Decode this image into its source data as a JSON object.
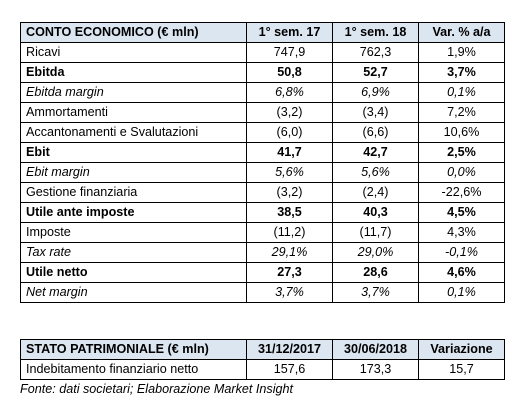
{
  "income_statement": {
    "headers": [
      "CONTO ECONOMICO (€ mln)",
      "1° sem. 17",
      "1° sem. 18",
      "Var. % a/a"
    ],
    "rows": [
      {
        "label": "Ricavi",
        "v1": "747,9",
        "v2": "762,3",
        "var": "1,9%",
        "style": "normal"
      },
      {
        "label": "Ebitda",
        "v1": "50,8",
        "v2": "52,7",
        "var": "3,7%",
        "style": "bold"
      },
      {
        "label": "Ebitda margin",
        "v1": "6,8%",
        "v2": "6,9%",
        "var": "0,1%",
        "style": "italic"
      },
      {
        "label": "Ammortamenti",
        "v1": "(3,2)",
        "v2": "(3,4)",
        "var": "7,2%",
        "style": "normal"
      },
      {
        "label": "Accantonamenti e Svalutazioni",
        "v1": "(6,0)",
        "v2": "(6,6)",
        "var": "10,6%",
        "style": "normal"
      },
      {
        "label": "Ebit",
        "v1": "41,7",
        "v2": "42,7",
        "var": "2,5%",
        "style": "bold"
      },
      {
        "label": "Ebit margin",
        "v1": "5,6%",
        "v2": "5,6%",
        "var": "0,0%",
        "style": "italic"
      },
      {
        "label": "Gestione finanziaria",
        "v1": "(3,2)",
        "v2": "(2,4)",
        "var": "-22,6%",
        "style": "normal"
      },
      {
        "label": "Utile ante imposte",
        "v1": "38,5",
        "v2": "40,3",
        "var": "4,5%",
        "style": "bold"
      },
      {
        "label": "Imposte",
        "v1": "(11,2)",
        "v2": "(11,7)",
        "var": "4,3%",
        "style": "normal"
      },
      {
        "label": "Tax rate",
        "v1": "29,1%",
        "v2": "29,0%",
        "var": "-0,1%",
        "style": "italic"
      },
      {
        "label": "Utile netto",
        "v1": "27,3",
        "v2": "28,6",
        "var": "4,6%",
        "style": "bold"
      },
      {
        "label": "Net margin",
        "v1": "3,7%",
        "v2": "3,7%",
        "var": "0,1%",
        "style": "italic"
      }
    ]
  },
  "balance_sheet": {
    "headers": [
      "STATO PATRIMONIALE (€ mln)",
      "31/12/2017",
      "30/06/2018",
      "Variazione"
    ],
    "rows": [
      {
        "label": "Indebitamento finanziario netto",
        "v1": "157,6",
        "v2": "173,3",
        "var": "15,7",
        "style": "normal"
      }
    ]
  },
  "source_note": "Fonte: dati societari; Elaborazione Market Insight",
  "colors": {
    "header_bg": "#dce6f1",
    "border": "#000000"
  }
}
